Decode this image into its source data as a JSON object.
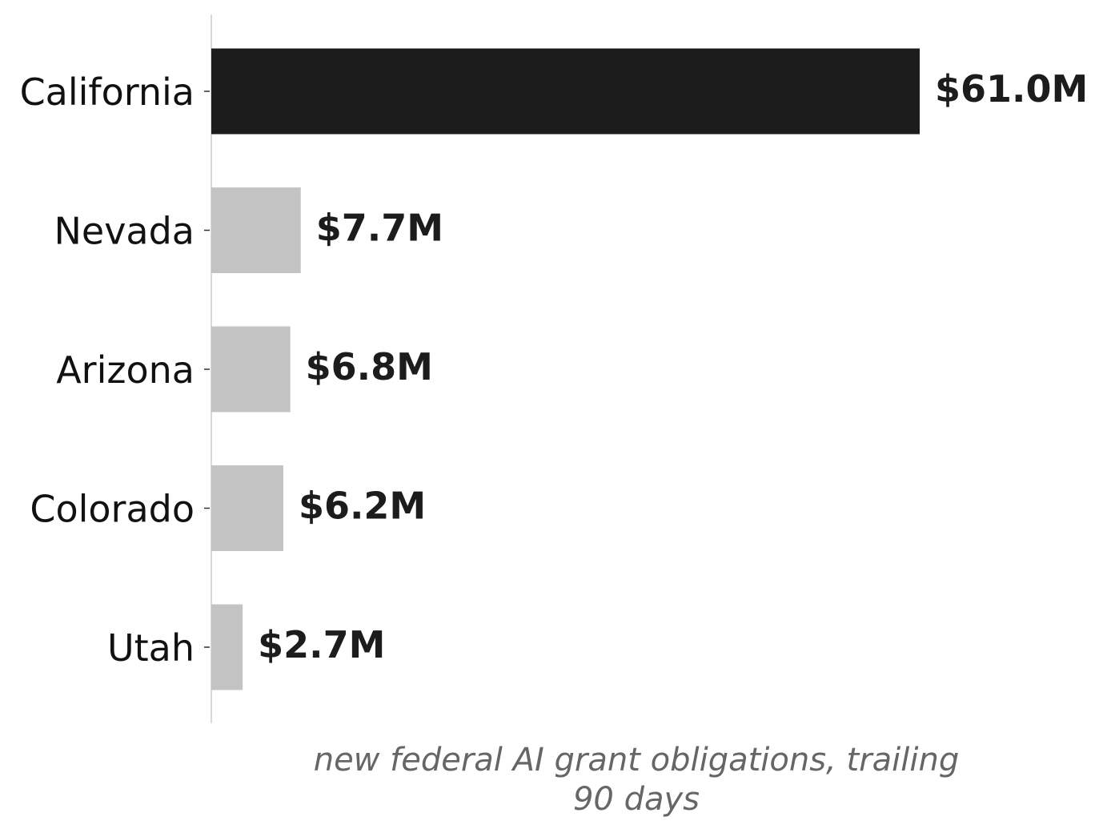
{
  "chart_data": {
    "type": "bar",
    "orientation": "horizontal",
    "categories": [
      "California",
      "Nevada",
      "Arizona",
      "Colorado",
      "Utah"
    ],
    "values": [
      61.0,
      7.7,
      6.8,
      6.2,
      2.7
    ],
    "value_labels": [
      "$61.0M",
      "$7.7M",
      "$6.8M",
      "$6.2M",
      "$2.7M"
    ],
    "unit": "$M",
    "xlabel_lines": [
      "new federal AI grant obligations, trailing",
      "90 days"
    ],
    "title": "",
    "xlim": [
      0,
      61.0
    ],
    "grid": false,
    "legend": "none",
    "colors": {
      "highlight": "#1c1c1c",
      "default": "#c3c3c3",
      "axis": "#d9d9d9"
    },
    "highlight_index": 0
  }
}
